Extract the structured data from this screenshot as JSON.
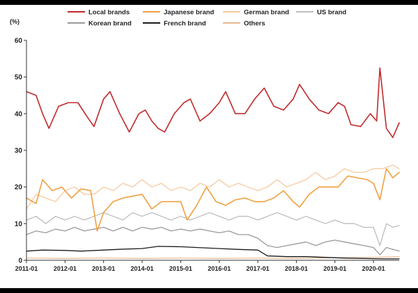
{
  "chart_data": {
    "type": "line",
    "title": "",
    "ylabel": "(%)",
    "xlabel": "",
    "ylim": [
      0,
      60
    ],
    "y_ticks": [
      "0",
      "10",
      "20",
      "30",
      "40",
      "50",
      "60"
    ],
    "x_tick_labels": [
      "2011-01",
      "2012-01",
      "2013-01",
      "2014-01",
      "2015-01",
      "2016-01",
      "2017-01",
      "2018-01",
      "2019-01",
      "2020-01"
    ],
    "x_range": [
      "2011-01",
      "2020-09"
    ],
    "grid": false,
    "legend_position": "top",
    "series": [
      {
        "name": "Local brands",
        "color": "#c0292b",
        "width": 1.6,
        "points": [
          [
            "2011-01",
            46
          ],
          [
            "2011-04",
            45
          ],
          [
            "2011-06",
            40
          ],
          [
            "2011-08",
            36
          ],
          [
            "2011-11",
            42
          ],
          [
            "2012-02",
            43
          ],
          [
            "2012-05",
            43
          ],
          [
            "2012-08",
            39
          ],
          [
            "2012-10",
            36.5
          ],
          [
            "2013-01",
            44
          ],
          [
            "2013-03",
            46
          ],
          [
            "2013-06",
            40
          ],
          [
            "2013-09",
            35
          ],
          [
            "2013-12",
            40
          ],
          [
            "2014-02",
            41
          ],
          [
            "2014-04",
            38
          ],
          [
            "2014-06",
            36
          ],
          [
            "2014-08",
            35
          ],
          [
            "2014-11",
            40
          ],
          [
            "2015-02",
            43
          ],
          [
            "2015-04",
            44
          ],
          [
            "2015-07",
            38
          ],
          [
            "2015-10",
            40
          ],
          [
            "2016-01",
            43
          ],
          [
            "2016-03",
            46
          ],
          [
            "2016-06",
            40
          ],
          [
            "2016-09",
            40
          ],
          [
            "2016-12",
            44
          ],
          [
            "2017-03",
            47
          ],
          [
            "2017-06",
            42
          ],
          [
            "2017-09",
            41
          ],
          [
            "2017-12",
            44
          ],
          [
            "2018-02",
            48
          ],
          [
            "2018-05",
            44
          ],
          [
            "2018-08",
            41
          ],
          [
            "2018-11",
            40
          ],
          [
            "2019-02",
            43
          ],
          [
            "2019-04",
            42
          ],
          [
            "2019-06",
            37
          ],
          [
            "2019-09",
            36.5
          ],
          [
            "2019-12",
            40
          ],
          [
            "2020-02",
            38
          ],
          [
            "2020-03",
            52.5
          ],
          [
            "2020-05",
            36
          ],
          [
            "2020-07",
            33.5
          ],
          [
            "2020-09",
            37.5
          ]
        ]
      },
      {
        "name": "Japanese brand",
        "color": "#f0a040",
        "width": 1.6,
        "points": [
          [
            "2011-01",
            17
          ],
          [
            "2011-04",
            15.5
          ],
          [
            "2011-06",
            22
          ],
          [
            "2011-09",
            19
          ],
          [
            "2011-12",
            20
          ],
          [
            "2012-03",
            17
          ],
          [
            "2012-06",
            19.5
          ],
          [
            "2012-09",
            19
          ],
          [
            "2012-11",
            8
          ],
          [
            "2013-01",
            13
          ],
          [
            "2013-04",
            16
          ],
          [
            "2013-07",
            17
          ],
          [
            "2013-10",
            17.5
          ],
          [
            "2014-01",
            18
          ],
          [
            "2014-04",
            14
          ],
          [
            "2014-07",
            16
          ],
          [
            "2014-10",
            16
          ],
          [
            "2015-01",
            16
          ],
          [
            "2015-03",
            11
          ],
          [
            "2015-06",
            15
          ],
          [
            "2015-09",
            20
          ],
          [
            "2015-12",
            16
          ],
          [
            "2016-03",
            15
          ],
          [
            "2016-06",
            16.5
          ],
          [
            "2016-09",
            17
          ],
          [
            "2016-12",
            16
          ],
          [
            "2017-03",
            16
          ],
          [
            "2017-06",
            17
          ],
          [
            "2017-09",
            19
          ],
          [
            "2017-12",
            16
          ],
          [
            "2018-02",
            14.5
          ],
          [
            "2018-05",
            18
          ],
          [
            "2018-08",
            20
          ],
          [
            "2018-11",
            20
          ],
          [
            "2019-02",
            20
          ],
          [
            "2019-05",
            23
          ],
          [
            "2019-08",
            22.5
          ],
          [
            "2019-11",
            22
          ],
          [
            "2020-01",
            21
          ],
          [
            "2020-03",
            16.5
          ],
          [
            "2020-05",
            25
          ],
          [
            "2020-07",
            22.5
          ],
          [
            "2020-09",
            24
          ]
        ]
      },
      {
        "name": "German brand",
        "color": "#f7caa0",
        "width": 1.3,
        "points": [
          [
            "2011-01",
            14
          ],
          [
            "2011-04",
            18
          ],
          [
            "2011-07",
            17
          ],
          [
            "2011-10",
            16
          ],
          [
            "2012-01",
            19
          ],
          [
            "2012-04",
            20
          ],
          [
            "2012-07",
            18
          ],
          [
            "2012-10",
            18
          ],
          [
            "2013-01",
            20
          ],
          [
            "2013-04",
            19
          ],
          [
            "2013-07",
            21
          ],
          [
            "2013-10",
            20
          ],
          [
            "2014-01",
            22
          ],
          [
            "2014-04",
            20
          ],
          [
            "2014-07",
            21
          ],
          [
            "2014-10",
            19
          ],
          [
            "2015-01",
            20
          ],
          [
            "2015-04",
            19
          ],
          [
            "2015-07",
            21
          ],
          [
            "2015-10",
            20
          ],
          [
            "2016-01",
            22
          ],
          [
            "2016-04",
            20
          ],
          [
            "2016-07",
            21
          ],
          [
            "2016-10",
            20
          ],
          [
            "2017-01",
            19
          ],
          [
            "2017-04",
            20
          ],
          [
            "2017-07",
            22
          ],
          [
            "2017-10",
            20
          ],
          [
            "2018-01",
            21
          ],
          [
            "2018-04",
            22
          ],
          [
            "2018-07",
            24
          ],
          [
            "2018-10",
            22
          ],
          [
            "2019-01",
            23
          ],
          [
            "2019-04",
            25
          ],
          [
            "2019-07",
            24
          ],
          [
            "2019-10",
            24
          ],
          [
            "2020-01",
            25
          ],
          [
            "2020-04",
            25
          ],
          [
            "2020-07",
            26
          ],
          [
            "2020-09",
            25
          ]
        ]
      },
      {
        "name": "US brand",
        "color": "#bdbdbd",
        "width": 1.3,
        "points": [
          [
            "2011-01",
            11
          ],
          [
            "2011-04",
            12
          ],
          [
            "2011-07",
            10
          ],
          [
            "2011-10",
            12
          ],
          [
            "2012-01",
            11
          ],
          [
            "2012-04",
            12
          ],
          [
            "2012-07",
            11
          ],
          [
            "2012-10",
            12
          ],
          [
            "2013-01",
            13
          ],
          [
            "2013-04",
            12
          ],
          [
            "2013-07",
            11
          ],
          [
            "2013-10",
            13
          ],
          [
            "2014-01",
            12
          ],
          [
            "2014-04",
            13
          ],
          [
            "2014-07",
            12
          ],
          [
            "2014-10",
            11
          ],
          [
            "2015-01",
            12
          ],
          [
            "2015-04",
            11
          ],
          [
            "2015-07",
            12
          ],
          [
            "2015-10",
            13
          ],
          [
            "2016-01",
            12
          ],
          [
            "2016-04",
            11
          ],
          [
            "2016-07",
            12
          ],
          [
            "2016-10",
            12
          ],
          [
            "2017-01",
            11
          ],
          [
            "2017-04",
            12
          ],
          [
            "2017-07",
            13
          ],
          [
            "2017-10",
            12
          ],
          [
            "2018-01",
            11
          ],
          [
            "2018-04",
            12
          ],
          [
            "2018-07",
            11
          ],
          [
            "2018-10",
            10
          ],
          [
            "2019-01",
            11
          ],
          [
            "2019-04",
            10
          ],
          [
            "2019-07",
            10
          ],
          [
            "2019-10",
            9
          ],
          [
            "2020-01",
            9
          ],
          [
            "2020-03",
            4
          ],
          [
            "2020-05",
            10
          ],
          [
            "2020-07",
            9
          ],
          [
            "2020-09",
            9.5
          ]
        ]
      },
      {
        "name": "Korean brand",
        "color": "#9a9a9a",
        "width": 1.3,
        "points": [
          [
            "2011-01",
            7
          ],
          [
            "2011-04",
            8
          ],
          [
            "2011-07",
            7.5
          ],
          [
            "2011-10",
            8.5
          ],
          [
            "2012-01",
            8
          ],
          [
            "2012-04",
            9
          ],
          [
            "2012-07",
            8
          ],
          [
            "2012-10",
            8.5
          ],
          [
            "2013-01",
            9
          ],
          [
            "2013-04",
            8
          ],
          [
            "2013-07",
            9
          ],
          [
            "2013-10",
            8
          ],
          [
            "2014-01",
            9
          ],
          [
            "2014-04",
            8.5
          ],
          [
            "2014-07",
            9
          ],
          [
            "2014-10",
            8
          ],
          [
            "2015-01",
            8.5
          ],
          [
            "2015-04",
            8
          ],
          [
            "2015-07",
            8.5
          ],
          [
            "2015-10",
            8
          ],
          [
            "2016-01",
            7.5
          ],
          [
            "2016-04",
            8
          ],
          [
            "2016-07",
            7
          ],
          [
            "2016-10",
            7
          ],
          [
            "2017-01",
            6
          ],
          [
            "2017-04",
            4
          ],
          [
            "2017-07",
            3.5
          ],
          [
            "2017-10",
            4
          ],
          [
            "2018-01",
            4.5
          ],
          [
            "2018-04",
            5
          ],
          [
            "2018-07",
            4
          ],
          [
            "2018-10",
            5
          ],
          [
            "2019-01",
            5.5
          ],
          [
            "2019-04",
            5
          ],
          [
            "2019-07",
            4.5
          ],
          [
            "2019-10",
            4
          ],
          [
            "2020-01",
            3.5
          ],
          [
            "2020-03",
            1.5
          ],
          [
            "2020-05",
            3.5
          ],
          [
            "2020-07",
            3
          ],
          [
            "2020-09",
            2.5
          ]
        ]
      },
      {
        "name": "French brand",
        "color": "#1a1a1a",
        "width": 1.3,
        "points": [
          [
            "2011-01",
            2.5
          ],
          [
            "2011-06",
            2.8
          ],
          [
            "2012-01",
            2.7
          ],
          [
            "2012-06",
            2.5
          ],
          [
            "2013-01",
            2.8
          ],
          [
            "2013-06",
            3
          ],
          [
            "2014-01",
            3.2
          ],
          [
            "2014-06",
            3.8
          ],
          [
            "2015-01",
            3.7
          ],
          [
            "2015-06",
            3.5
          ],
          [
            "2016-01",
            3.2
          ],
          [
            "2016-06",
            3
          ],
          [
            "2017-01",
            2.8
          ],
          [
            "2017-04",
            1.2
          ],
          [
            "2017-10",
            1
          ],
          [
            "2018-04",
            1
          ],
          [
            "2018-10",
            0.8
          ],
          [
            "2019-04",
            0.6
          ],
          [
            "2019-10",
            0.5
          ],
          [
            "2020-04",
            0.4
          ],
          [
            "2020-09",
            0.4
          ]
        ]
      },
      {
        "name": "Others",
        "color": "#e8b890",
        "width": 1.2,
        "points": [
          [
            "2011-01",
            0.6
          ],
          [
            "2012-01",
            0.5
          ],
          [
            "2013-01",
            0.6
          ],
          [
            "2014-01",
            0.5
          ],
          [
            "2015-01",
            0.6
          ],
          [
            "2016-01",
            0.5
          ],
          [
            "2017-01",
            0.6
          ],
          [
            "2018-01",
            0.5
          ],
          [
            "2019-01",
            0.7
          ],
          [
            "2020-01",
            0.8
          ],
          [
            "2020-09",
            1
          ]
        ]
      }
    ]
  }
}
